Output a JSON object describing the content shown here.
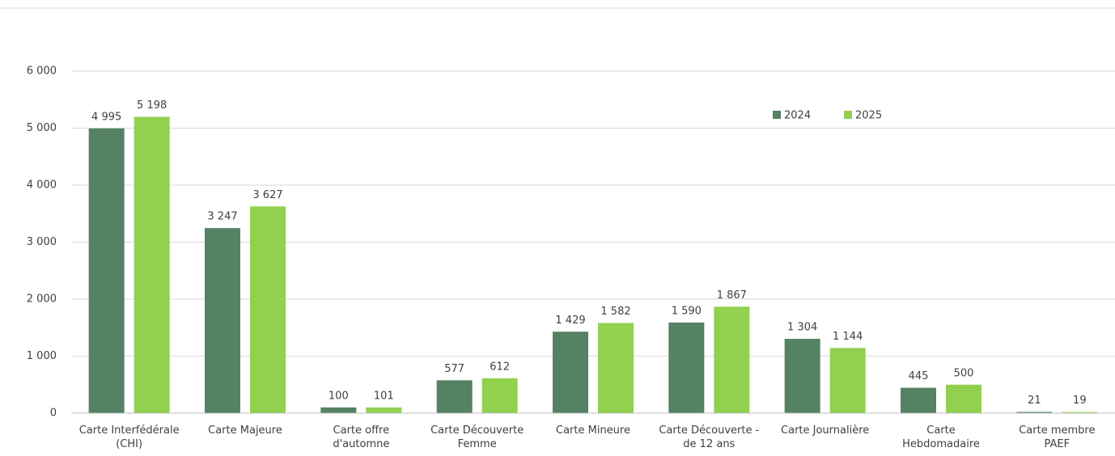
{
  "chart_data": {
    "type": "bar",
    "categories": [
      "Carte Interfédérale (CHI)",
      "Carte Majeure",
      "Carte offre d'automne",
      "Carte Découverte Femme",
      "Carte Mineure",
      "Carte Découverte - de 12 ans",
      "Carte Journalière",
      "Carte Hebdomadaire",
      "Carte membre PAEF"
    ],
    "series": [
      {
        "name": "2024",
        "color": "#548263",
        "values": [
          4995,
          3247,
          100,
          577,
          1429,
          1590,
          1304,
          445,
          21
        ],
        "value_labels": [
          "4 995",
          "3 247",
          "100",
          "577",
          "1 429",
          "1 590",
          "1 304",
          "445",
          "21"
        ]
      },
      {
        "name": "2025",
        "color": "#92d050",
        "values": [
          5198,
          3627,
          101,
          612,
          1582,
          1867,
          1144,
          500,
          19
        ],
        "value_labels": [
          "5 198",
          "3 627",
          "101",
          "612",
          "1 582",
          "1 867",
          "1 144",
          "500",
          "19"
        ]
      }
    ],
    "ylim": [
      0,
      6000
    ],
    "yticks": [
      0,
      {
        "value": 1000,
        "label": "1 000"
      },
      {
        "value": 2000,
        "label": "2 000"
      },
      {
        "value": 3000,
        "label": "3 000"
      },
      {
        "value": 4000,
        "label": "4 000"
      },
      {
        "value": 5000,
        "label": "5 000"
      },
      {
        "value": 6000,
        "label": "6 000"
      }
    ],
    "grid": true,
    "legend": "top-right"
  }
}
